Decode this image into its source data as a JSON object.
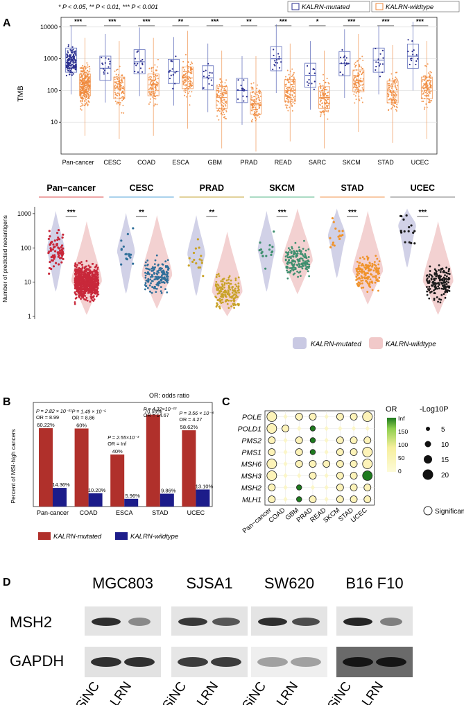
{
  "figure": {
    "panel_labels": {
      "a": "A",
      "b": "B",
      "c": "C",
      "d": "D"
    },
    "colors": {
      "mutated_dark": "#2b2f8f",
      "mutated_box": "#6b78c0",
      "wildtype": "#f08a3c",
      "pan_red": "#c8283a",
      "cesc_blue": "#2f6f9a",
      "prad_gold": "#c9a227",
      "skcm_green": "#3f8f6f",
      "stad_orange": "#f0932b",
      "ucec_black": "#1a1a1a",
      "violin_mut": "#c9c9e3",
      "violin_wt": "#f1c9c9",
      "bar_mut": "#b0302b",
      "bar_wt": "#1c1c8a"
    }
  },
  "panel_a": {
    "significance_note": "* P < 0.05, ** P < 0.01, *** P < 0.001",
    "legend": {
      "mutated": "KALRN-mutated",
      "wildtype": "KALRN-wildtype"
    },
    "chart_data": {
      "type": "box",
      "ylabel": "TMB",
      "yscale": "log",
      "ylim": [
        1,
        20000
      ],
      "yticks": [
        "10000",
        "1000",
        "100",
        "10"
      ],
      "categories": [
        "Pan-cancer",
        "CESC",
        "COAD",
        "ESCA",
        "GBM",
        "PRAD",
        "READ",
        "SARC",
        "SKCM",
        "STAD",
        "UCEC"
      ],
      "significance": [
        "***",
        "***",
        "***",
        "**",
        "***",
        "**",
        "***",
        "*",
        "***",
        "***",
        "***"
      ],
      "mutated_median": [
        900,
        500,
        800,
        400,
        250,
        100,
        1000,
        300,
        700,
        900,
        1200
      ],
      "wildtype_median": [
        150,
        120,
        150,
        250,
        60,
        40,
        100,
        60,
        200,
        90,
        120
      ]
    }
  },
  "panel_a2": {
    "facets": [
      "Pan−cancer",
      "CESC",
      "PRAD",
      "SKCM",
      "STAD",
      "UCEC"
    ],
    "significance": [
      "***",
      "**",
      "**",
      "***",
      "***",
      "***"
    ],
    "chart_data": {
      "type": "violin",
      "ylabel": "Number of predicted neoantigens",
      "yscale": "log",
      "yticks": [
        "1000",
        "100",
        "10",
        "1"
      ],
      "mutated_median": [
        80,
        70,
        60,
        80,
        200,
        400
      ],
      "wildtype_median": [
        10,
        15,
        5,
        40,
        20,
        10
      ]
    },
    "legend": {
      "mutated": "KALRN-mutated",
      "wildtype": "KALRN-wildtype"
    }
  },
  "panel_b": {
    "or_note": "OR: odds ratio",
    "chart_data": {
      "type": "bar",
      "ylabel": "Percent of MSI-high cancers",
      "categories": [
        "Pan-cancer",
        "COAD",
        "ESCA",
        "STAD",
        "UCEC"
      ],
      "series": [
        {
          "name": "KALRN-mutated",
          "values": [
            60.22,
            60,
            40,
            70.59,
            58.62
          ],
          "labels": [
            "60.22%",
            "60%",
            "40%",
            "70.59%",
            "58.62%"
          ]
        },
        {
          "name": "KALRN-wildtype",
          "values": [
            14.36,
            10.2,
            5.96,
            9.86,
            13.1
          ],
          "labels": [
            "14.36%",
            "10.20%",
            "5.96%",
            "9.86%",
            "13.10%"
          ]
        }
      ],
      "ylim": [
        0,
        80
      ],
      "annotations": [
        {
          "p": "P = 2.82 × 10⁻²¹",
          "or": "OR = 8.99"
        },
        {
          "p": "P = 1.49 × 10⁻⁵",
          "or": "OR = 8.86"
        },
        {
          "p": "P = 2.55×10⁻³",
          "or": "OR = Inf"
        },
        {
          "p": "P = 4.32×10⁻¹²",
          "or": "OR = 14.67"
        },
        {
          "p": "P = 3.56 × 10⁻⁴",
          "or": "OR = 4.27"
        }
      ]
    },
    "legend": {
      "mutated": "KALRN-mutated",
      "wildtype": "KALRN-wildtype"
    }
  },
  "panel_c": {
    "chart_data": {
      "type": "dot-heatmap",
      "rows": [
        "POLE",
        "POLD1",
        "PMS2",
        "PMS1",
        "MSH6",
        "MSH3",
        "MSH2",
        "MLH1"
      ],
      "columns": [
        "Pan−cancer",
        "COAD",
        "GBM",
        "PRAD",
        "READ",
        "SKCM",
        "STAD",
        "UCEC"
      ],
      "legend_or_title": "OR",
      "legend_or_ticks": [
        "Inf",
        "150",
        "100",
        "50",
        "0"
      ],
      "legend_p_title": "-Log10P",
      "legend_p_values": [
        "5",
        "10",
        "15",
        "20"
      ],
      "significant_label": "Significant",
      "cells": [
        [
          "big",
          "none",
          "mid",
          "mid",
          "none",
          "mid",
          "mid",
          "big"
        ],
        [
          "big",
          "mid",
          "none",
          "green",
          "none",
          "none",
          "none",
          "none"
        ],
        [
          "mid",
          "none",
          "mid",
          "green",
          "none",
          "mid",
          "mid",
          "mid"
        ],
        [
          "mid",
          "none",
          "mid",
          "green",
          "none",
          "mid",
          "mid",
          "big"
        ],
        [
          "big",
          "none",
          "mid",
          "mid",
          "mid",
          "mid",
          "mid",
          "big"
        ],
        [
          "big",
          "none",
          "none",
          "mid",
          "none",
          "mid",
          "mid",
          "darkgreen"
        ],
        [
          "mid",
          "none",
          "green",
          "none",
          "none",
          "mid",
          "mid",
          "mid"
        ],
        [
          "mid",
          "none",
          "green",
          "mid",
          "none",
          "mid",
          "mid",
          "mid"
        ]
      ]
    }
  },
  "panel_d": {
    "cell_lines": [
      "MGC803",
      "SJSA1",
      "SW620",
      "B16 F10"
    ],
    "proteins": [
      "MSH2",
      "GAPDH"
    ],
    "lanes": [
      "SiNC",
      "SiKALRN"
    ]
  }
}
